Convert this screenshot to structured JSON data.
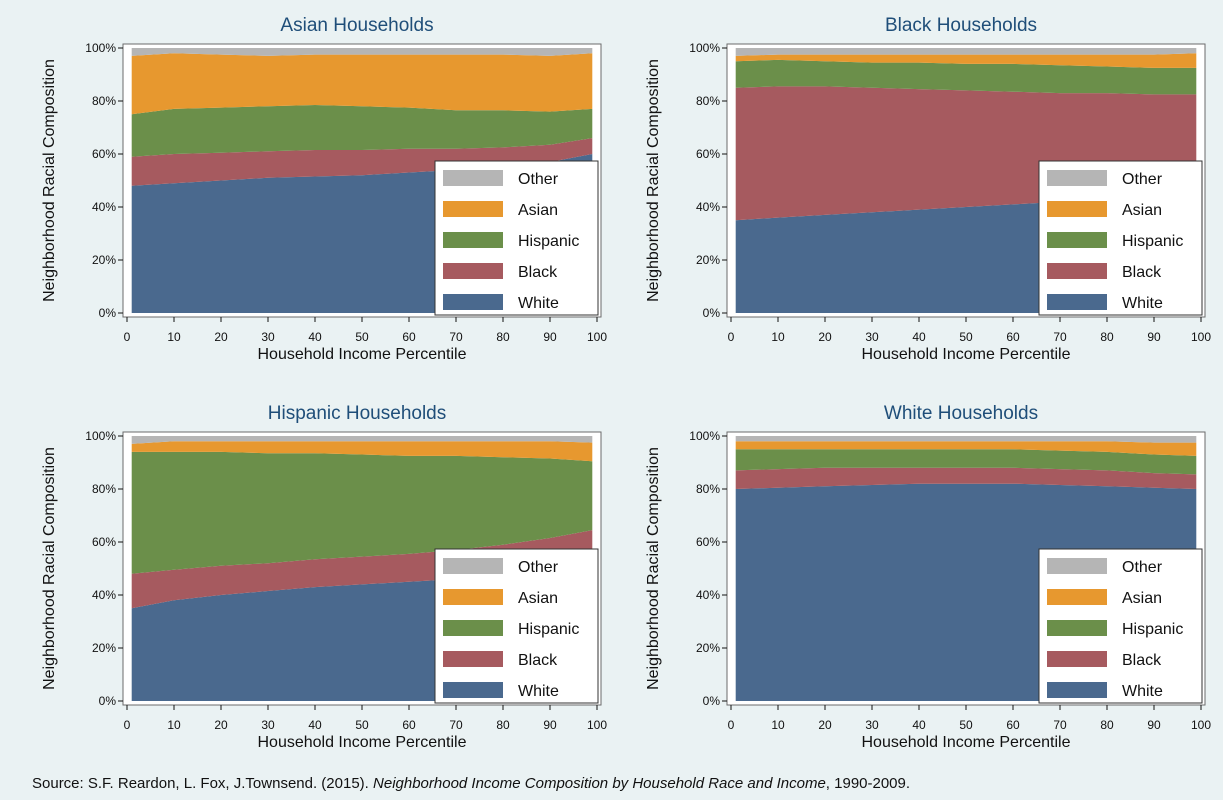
{
  "colors": {
    "White": "#4a698e",
    "Black": "#a65a5f",
    "Hispanic": "#6b8f4a",
    "Asian": "#e7982f",
    "Other": "#b5b5b5",
    "background": "#eaf2f3",
    "plot_background": "#ffffff",
    "title": "#1f4e79"
  },
  "chart_data": [
    {
      "type": "area",
      "stacked": true,
      "title": "Asian Households",
      "xlabel": "Household Income Percentile",
      "ylabel": "Neighborhood Racial Composition",
      "xlim": [
        0,
        100
      ],
      "ylim": [
        0,
        100
      ],
      "x_ticks": [
        "0",
        "10",
        "20",
        "30",
        "40",
        "50",
        "60",
        "70",
        "80",
        "90",
        "100"
      ],
      "y_ticks": [
        "0%",
        "20%",
        "40%",
        "60%",
        "80%",
        "100%"
      ],
      "legend": [
        "Other",
        "Asian",
        "Hispanic",
        "Black",
        "White"
      ],
      "legend_position": "bottom-right",
      "x": [
        1,
        10,
        20,
        30,
        40,
        50,
        60,
        70,
        80,
        90,
        99
      ],
      "series": [
        {
          "name": "White",
          "values": [
            48,
            49,
            50,
            51,
            51.5,
            52,
            53,
            54,
            55,
            57,
            60
          ]
        },
        {
          "name": "Black",
          "values": [
            11,
            11,
            10.5,
            10,
            10,
            9.5,
            9,
            8,
            7.5,
            6.5,
            6
          ]
        },
        {
          "name": "Hispanic",
          "values": [
            16,
            17,
            17,
            17,
            17,
            16.5,
            15.5,
            14.5,
            14,
            12.5,
            11
          ]
        },
        {
          "name": "Asian",
          "values": [
            22,
            21,
            20,
            19,
            19,
            19.5,
            20,
            21,
            21,
            21,
            21
          ]
        },
        {
          "name": "Other",
          "values": [
            3,
            2,
            2.5,
            3,
            2.5,
            2.5,
            2.5,
            2.5,
            2.5,
            3,
            2
          ]
        }
      ]
    },
    {
      "type": "area",
      "stacked": true,
      "title": "Black Households",
      "xlabel": "Household Income Percentile",
      "ylabel": "Neighborhood Racial Composition",
      "xlim": [
        0,
        100
      ],
      "ylim": [
        0,
        100
      ],
      "x_ticks": [
        "0",
        "10",
        "20",
        "30",
        "40",
        "50",
        "60",
        "70",
        "80",
        "90",
        "100"
      ],
      "y_ticks": [
        "0%",
        "20%",
        "40%",
        "60%",
        "80%",
        "100%"
      ],
      "legend": [
        "Other",
        "Asian",
        "Hispanic",
        "Black",
        "White"
      ],
      "legend_position": "bottom-right",
      "x": [
        1,
        10,
        20,
        30,
        40,
        50,
        60,
        70,
        80,
        90,
        99
      ],
      "series": [
        {
          "name": "White",
          "values": [
            35,
            36,
            37,
            38,
            39,
            40,
            41,
            42,
            43,
            44.5,
            46
          ]
        },
        {
          "name": "Black",
          "values": [
            50,
            49.5,
            48.5,
            47,
            45.5,
            44,
            42.5,
            41,
            40,
            38,
            36.5
          ]
        },
        {
          "name": "Hispanic",
          "values": [
            10,
            10,
            9.5,
            9.5,
            10,
            10,
            10.5,
            10.5,
            10,
            10,
            10
          ]
        },
        {
          "name": "Asian",
          "values": [
            2,
            2,
            2.5,
            3,
            3,
            3.5,
            3.5,
            4,
            4.5,
            5,
            5.5
          ]
        },
        {
          "name": "Other",
          "values": [
            3,
            2.5,
            2.5,
            2.5,
            2.5,
            2.5,
            2.5,
            2.5,
            2.5,
            2.5,
            2
          ]
        }
      ]
    },
    {
      "type": "area",
      "stacked": true,
      "title": "Hispanic Households",
      "xlabel": "Household Income Percentile",
      "ylabel": "Neighborhood Racial Composition",
      "xlim": [
        0,
        100
      ],
      "ylim": [
        0,
        100
      ],
      "x_ticks": [
        "0",
        "10",
        "20",
        "30",
        "40",
        "50",
        "60",
        "70",
        "80",
        "90",
        "100"
      ],
      "y_ticks": [
        "0%",
        "20%",
        "40%",
        "60%",
        "80%",
        "100%"
      ],
      "legend": [
        "Other",
        "Asian",
        "Hispanic",
        "Black",
        "White"
      ],
      "legend_position": "bottom-right",
      "x": [
        1,
        10,
        20,
        30,
        40,
        50,
        60,
        70,
        80,
        90,
        99
      ],
      "series": [
        {
          "name": "White",
          "values": [
            35,
            38,
            40,
            41.5,
            43,
            44,
            45,
            46,
            47,
            48.5,
            50
          ]
        },
        {
          "name": "Black",
          "values": [
            13,
            11.5,
            11,
            10.5,
            10.5,
            10.5,
            10.5,
            11,
            12,
            13,
            14.5
          ]
        },
        {
          "name": "Hispanic",
          "values": [
            46,
            44.5,
            43,
            41.5,
            40,
            38.5,
            37,
            35.5,
            33,
            30,
            26
          ]
        },
        {
          "name": "Asian",
          "values": [
            3,
            4,
            4,
            4.5,
            4.5,
            5,
            5.5,
            5.5,
            6,
            6.5,
            7
          ]
        },
        {
          "name": "Other",
          "values": [
            3,
            2,
            2,
            2,
            2,
            2,
            2,
            2,
            2,
            2,
            2.5
          ]
        }
      ]
    },
    {
      "type": "area",
      "stacked": true,
      "title": "White Households",
      "xlabel": "Household Income Percentile",
      "ylabel": "Neighborhood Racial Composition",
      "xlim": [
        0,
        100
      ],
      "ylim": [
        0,
        100
      ],
      "x_ticks": [
        "0",
        "10",
        "20",
        "30",
        "40",
        "50",
        "60",
        "70",
        "80",
        "90",
        "100"
      ],
      "y_ticks": [
        "0%",
        "20%",
        "40%",
        "60%",
        "80%",
        "100%"
      ],
      "legend": [
        "Other",
        "Asian",
        "Hispanic",
        "Black",
        "White"
      ],
      "legend_position": "bottom-right",
      "x": [
        1,
        10,
        20,
        30,
        40,
        50,
        60,
        70,
        80,
        90,
        99
      ],
      "series": [
        {
          "name": "White",
          "values": [
            80,
            80.5,
            81,
            81.5,
            82,
            82,
            82,
            81.5,
            81,
            80.5,
            80
          ]
        },
        {
          "name": "Black",
          "values": [
            7,
            7,
            7,
            6.5,
            6,
            6,
            6,
            6,
            6,
            5.5,
            5.5
          ]
        },
        {
          "name": "Hispanic",
          "values": [
            8,
            7.5,
            7,
            7,
            7,
            7,
            7,
            7,
            7,
            7,
            7
          ]
        },
        {
          "name": "Asian",
          "values": [
            3,
            3,
            3,
            3,
            3,
            3,
            3,
            3.5,
            4,
            4.5,
            5
          ]
        },
        {
          "name": "Other",
          "values": [
            2,
            2,
            2,
            2,
            2,
            2,
            2,
            2,
            2,
            2.5,
            2.5
          ]
        }
      ]
    }
  ],
  "source": {
    "prefix": "Source: S.F. Reardon, L. Fox, J.Townsend. (2015). ",
    "title": "Neighborhood Income Composition by Household Race and Income",
    "suffix": ", 1990-2009."
  }
}
